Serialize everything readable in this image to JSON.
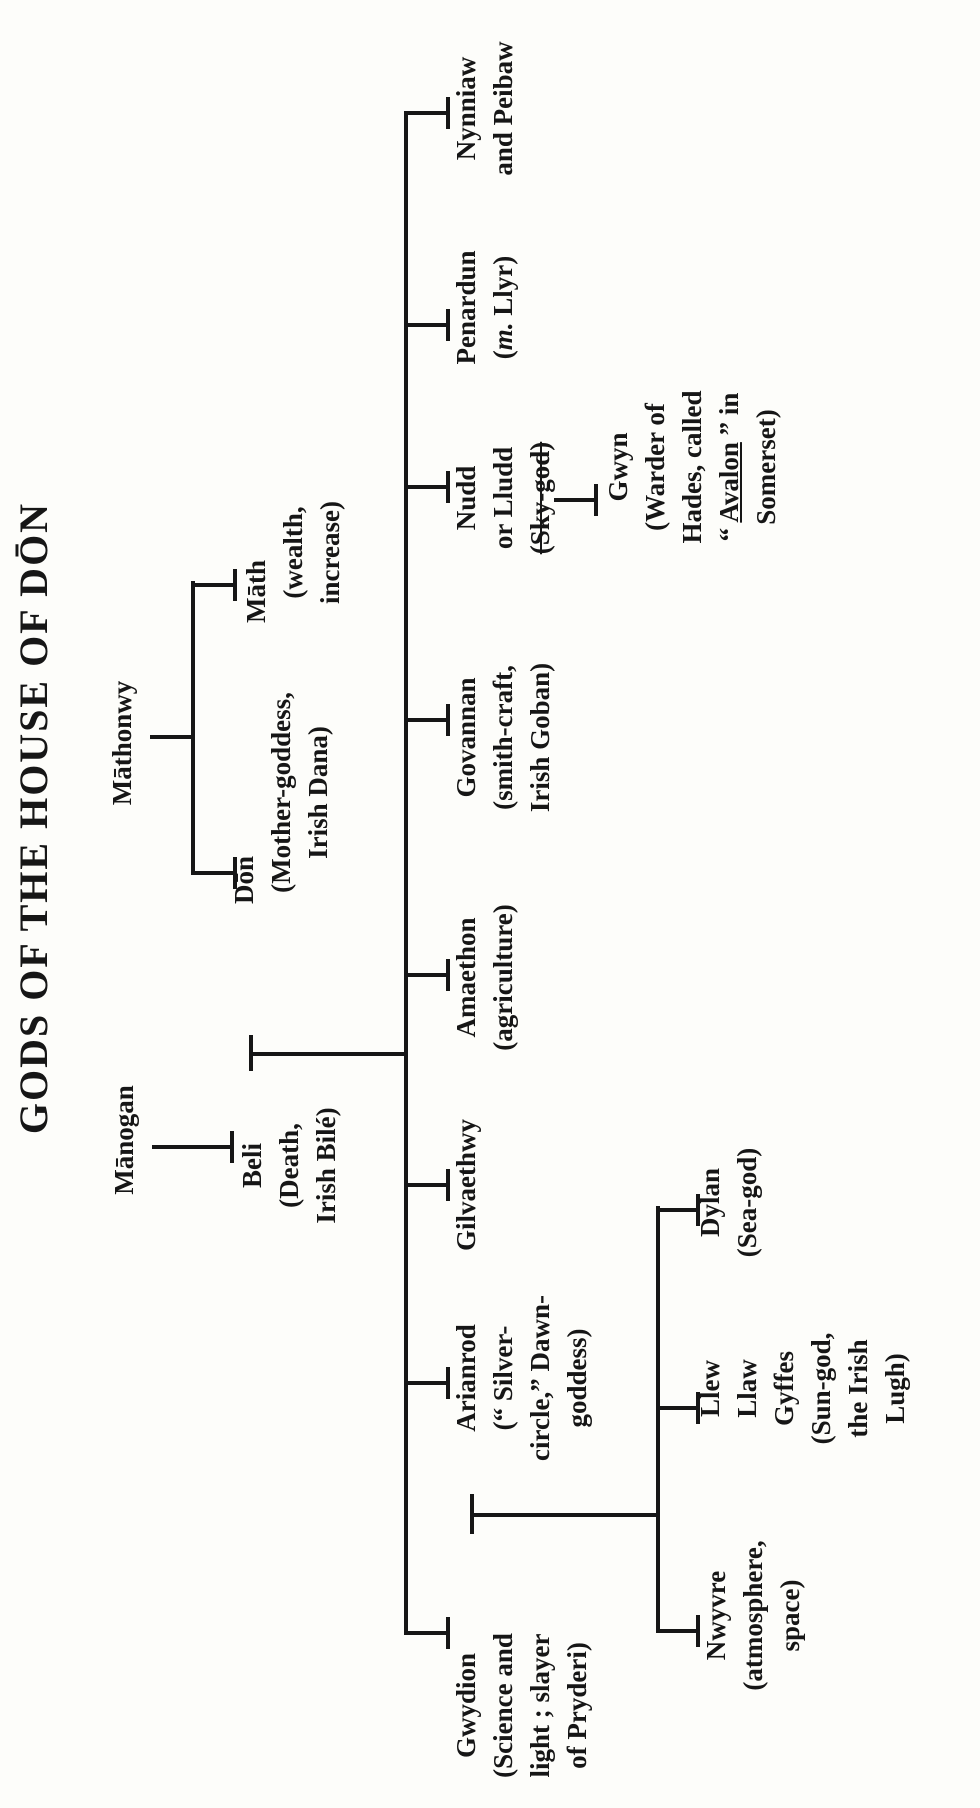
{
  "title": "GODS OF THE HOUSE OF DŌN",
  "colors": {
    "ink": "#161616",
    "paper": "#fdfdfa"
  },
  "nodes": {
    "manogan": {
      "lines": [
        "Mānogan"
      ]
    },
    "mathonwy": {
      "lines": [
        "Māthonwy"
      ]
    },
    "beli": {
      "lines": [
        "Beli",
        "(Death,",
        "Irish Bilé)"
      ]
    },
    "don": {
      "lines": [
        "Dōn",
        "(Mother-goddess,",
        "Irish Dana)"
      ]
    },
    "math": {
      "lines": [
        "Māth",
        "(wealth,",
        "increase)"
      ]
    },
    "gwydion": {
      "lines": [
        "Gwydion",
        "(Science and",
        "light ; slayer",
        "of Pryderi)"
      ]
    },
    "arianrod": {
      "lines": [
        "Arianrod",
        "(“ Silver-",
        "circle,” Dawn-",
        "goddess)"
      ]
    },
    "gilvaethwy": {
      "lines": [
        "Gilvaethwy"
      ]
    },
    "amaethon": {
      "lines": [
        "Amaethon",
        "(agriculture)"
      ]
    },
    "govannan": {
      "lines": [
        "Govannan",
        "(smith-craft,",
        "Irish Goban)"
      ]
    },
    "nudd": {
      "lines": [
        "Nudd",
        "or Lludd"
      ],
      "struck_line": "(Sky-god)"
    },
    "penardun": {
      "name": "Penardun",
      "paren_open": "(",
      "married_abbr": "m.",
      "paren_rest": " Llyr)"
    },
    "nynniaw": {
      "lines": [
        "Nynniaw",
        "and Peibaw"
      ]
    },
    "gwyn": {
      "lines": [
        "Gwyn",
        "(Warder of",
        "Hades, called"
      ],
      "avalon_pre": "“ ",
      "avalon_word": "Avalon",
      "avalon_post": " ” in",
      "last_line": "Somerset)"
    },
    "nwyvre": {
      "lines": [
        "Nwyvre",
        "(atmosphere,",
        "space)"
      ]
    },
    "llew": {
      "lines": [
        "Llew",
        "Llaw",
        "Gyffes",
        "(Sun-god,",
        "the Irish",
        "Lugh)"
      ]
    },
    "dylan": {
      "lines": [
        "Dylan",
        "(Sea-god)"
      ]
    }
  },
  "relationships": {
    "manogan_child": "Beli",
    "mathonwy_children": [
      "Dōn",
      "Māth"
    ],
    "beli_marries": "Dōn",
    "beli_don_children": [
      "Gwydion",
      "Arianrod",
      "Gilvaethwy",
      "Amaethon",
      "Govannan",
      "Nudd or Lludd",
      "Penardun",
      "Nynniaw and Peibaw"
    ],
    "nudd_child": "Gwyn",
    "gwydion_marries": "Arianrod",
    "gwydion_arianrod_children": [
      "Nwyvre",
      "Llew Llaw Gyffes",
      "Dylan"
    ]
  }
}
